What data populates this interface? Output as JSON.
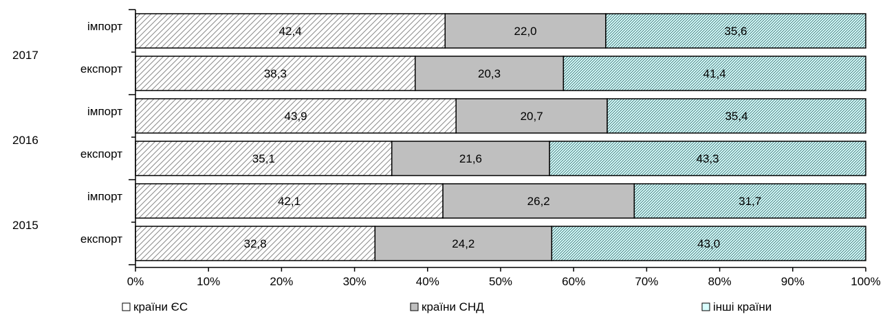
{
  "chart_data": {
    "type": "bar",
    "orientation": "horizontal",
    "stacked": "percent",
    "groups": [
      {
        "label": "2017",
        "rows": [
          {
            "label": "імпорт",
            "values": [
              42.4,
              22.0,
              35.6
            ],
            "value_labels": [
              "42,4",
              "22,0",
              "35,6"
            ]
          },
          {
            "label": "експорт",
            "values": [
              38.3,
              20.3,
              41.4
            ],
            "value_labels": [
              "38,3",
              "20,3",
              "41,4"
            ]
          }
        ]
      },
      {
        "label": "2016",
        "rows": [
          {
            "label": "імпорт",
            "values": [
              43.9,
              20.7,
              35.4
            ],
            "value_labels": [
              "43,9",
              "20,7",
              "35,4"
            ]
          },
          {
            "label": "експорт",
            "values": [
              35.1,
              21.6,
              43.3
            ],
            "value_labels": [
              "35,1",
              "21,6",
              "43,3"
            ]
          }
        ]
      },
      {
        "label": "2015",
        "rows": [
          {
            "label": "імпорт",
            "values": [
              42.1,
              26.2,
              31.7
            ],
            "value_labels": [
              "42,1",
              "26,2",
              "31,7"
            ]
          },
          {
            "label": "експорт",
            "values": [
              32.8,
              24.2,
              43.0
            ],
            "value_labels": [
              "32,8",
              "24,2",
              "43,0"
            ]
          }
        ]
      }
    ],
    "series": [
      {
        "name": "країни ЄС",
        "fill": "#ffffff",
        "pattern": "diagonal-hatch",
        "pattern_color": "#8a8a8a"
      },
      {
        "name": "країни СНД",
        "fill": "#bfbfbf",
        "pattern": "none"
      },
      {
        "name": "інші країни",
        "fill": "#d9ffff",
        "pattern": "fine-diagonal-hatch",
        "pattern_color": "#3a6a6a"
      }
    ],
    "xlim": [
      0,
      100
    ],
    "x_ticks": [
      0,
      10,
      20,
      30,
      40,
      50,
      60,
      70,
      80,
      90,
      100
    ],
    "x_tick_labels": [
      "0%",
      "10%",
      "20%",
      "30%",
      "40%",
      "50%",
      "60%",
      "70%",
      "80%",
      "90%",
      "100%"
    ],
    "legend_position": "bottom",
    "grid": false
  }
}
